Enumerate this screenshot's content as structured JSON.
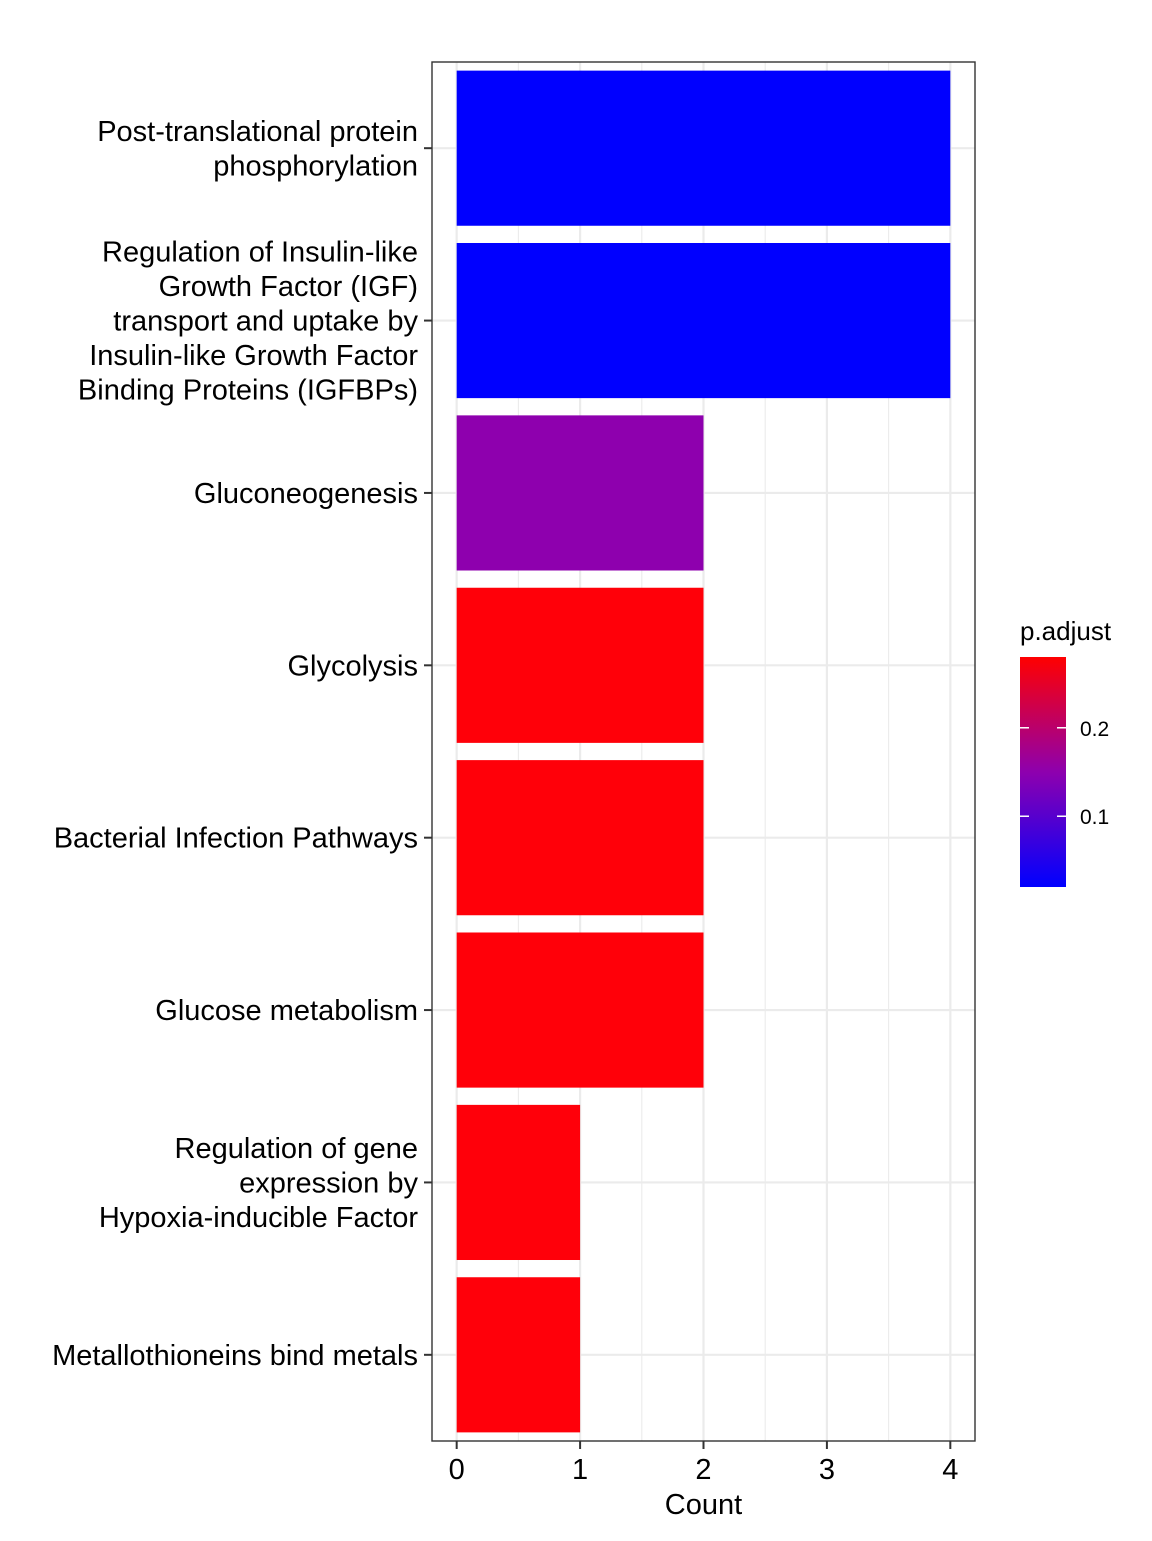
{
  "chart_data": {
    "type": "bar",
    "orientation": "horizontal",
    "categories": [
      [
        "Post-translational protein",
        "phosphorylation"
      ],
      [
        "Regulation of Insulin-like",
        "Growth Factor (IGF)",
        "transport and uptake by",
        "Insulin-like Growth Factor",
        "Binding Proteins (IGFBPs)"
      ],
      [
        "Gluconeogenesis"
      ],
      [
        "Glycolysis"
      ],
      [
        "Bacterial Infection Pathways"
      ],
      [
        "Glucose metabolism"
      ],
      [
        "Regulation of gene",
        "expression by",
        "Hypoxia-inducible Factor"
      ],
      [
        "Metallothioneins bind metals"
      ]
    ],
    "values": [
      4,
      4,
      2,
      2,
      2,
      2,
      1,
      1
    ],
    "bar_colors": [
      "#0000FF",
      "#0000FF",
      "#8E00AE",
      "#FF0009",
      "#FF0009",
      "#FF0009",
      "#FF000A",
      "#FF000A"
    ],
    "xlabel": "Count",
    "ylabel": "",
    "xlim": [
      -0.2,
      4.2
    ],
    "x_ticks": [
      "0",
      "1",
      "2",
      "3",
      "4"
    ],
    "grid": true,
    "legend": {
      "title": "p.adjust",
      "position": "right",
      "range": [
        0.02,
        0.28
      ],
      "ticks": [
        {
          "value": 0.1,
          "label": "0.1"
        },
        {
          "value": 0.2,
          "label": "0.2"
        }
      ],
      "low_color": "#0000FF",
      "mid_color": "#8E00AE",
      "high_color": "#FF0000"
    }
  }
}
